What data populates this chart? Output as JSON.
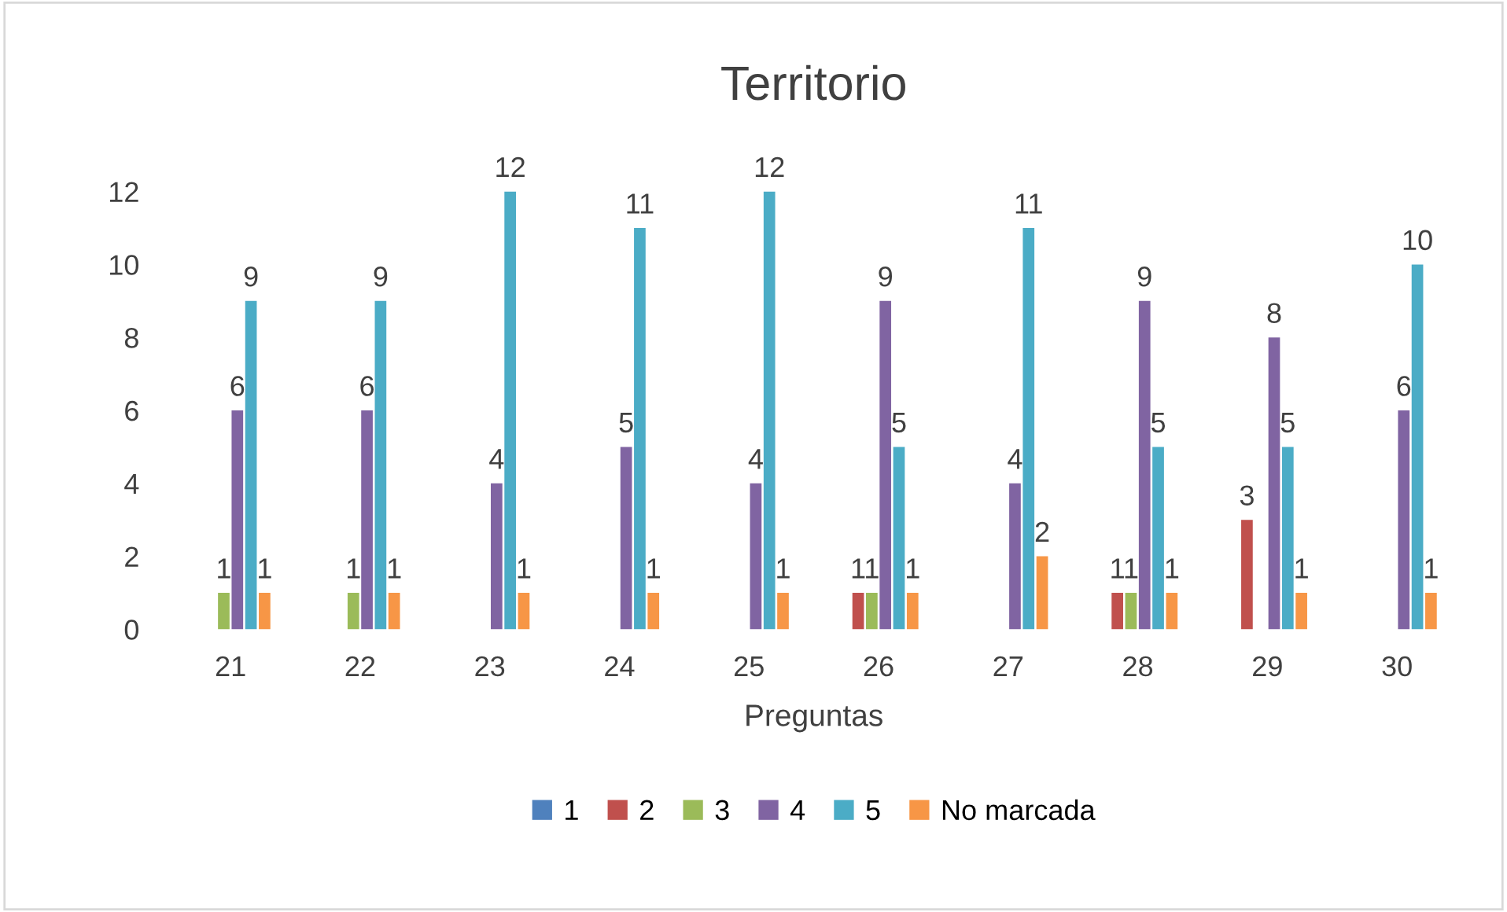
{
  "chart_data": {
    "type": "bar",
    "title": "Territorio",
    "xlabel": "Preguntas",
    "categories": [
      "21",
      "22",
      "23",
      "24",
      "25",
      "26",
      "27",
      "28",
      "29",
      "30"
    ],
    "series": [
      {
        "name": "1",
        "color": "#4f81bd",
        "values": [
          0,
          0,
          0,
          0,
          0,
          0,
          0,
          0,
          0,
          0
        ],
        "value_labels": [
          null,
          null,
          null,
          null,
          null,
          null,
          null,
          null,
          null,
          null
        ]
      },
      {
        "name": "2",
        "color": "#c0504d",
        "values": [
          0,
          0,
          0,
          0,
          0,
          1,
          0,
          1,
          3,
          0
        ],
        "value_labels": [
          null,
          null,
          null,
          null,
          null,
          "1",
          null,
          "1",
          "3",
          null
        ]
      },
      {
        "name": "3",
        "color": "#9bbb59",
        "values": [
          1,
          1,
          0,
          0,
          0,
          1,
          0,
          1,
          0,
          0
        ],
        "value_labels": [
          "1",
          "1",
          null,
          null,
          null,
          "1",
          null,
          "1",
          null,
          null
        ]
      },
      {
        "name": "4",
        "color": "#8064a2",
        "values": [
          6,
          6,
          4,
          5,
          4,
          9,
          4,
          9,
          8,
          6
        ],
        "value_labels": [
          "6",
          "6",
          "4",
          "5",
          "4",
          "9",
          "4",
          "9",
          "8",
          "6"
        ]
      },
      {
        "name": "5",
        "color": "#4bacc6",
        "values": [
          9,
          9,
          12,
          11,
          12,
          5,
          11,
          5,
          5,
          10
        ],
        "value_labels": [
          "9",
          "9",
          "12",
          "11",
          "12",
          "5",
          "11",
          "5",
          "5",
          "10"
        ]
      },
      {
        "name": "No marcada",
        "color": "#f79646",
        "values": [
          1,
          1,
          1,
          1,
          1,
          1,
          2,
          1,
          1,
          1
        ],
        "value_labels": [
          "1",
          "1",
          "1",
          "1",
          "1",
          "1",
          "2",
          "1",
          "1",
          "1"
        ]
      }
    ],
    "ylim": [
      0,
      12
    ],
    "yticks": [
      0,
      2,
      4,
      6,
      8,
      10,
      12
    ],
    "grid": false,
    "legend": "bottom"
  }
}
